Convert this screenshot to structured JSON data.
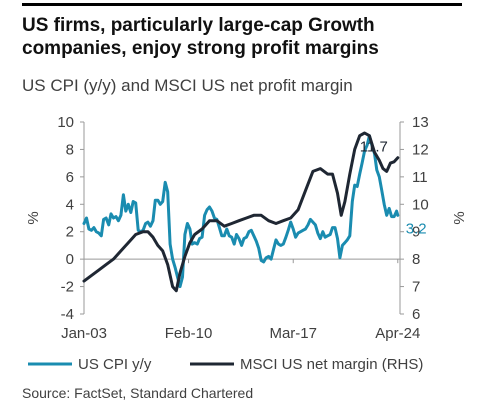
{
  "header": {
    "title": "US firms, particularly large-cap Growth companies, enjoy strong profit margins",
    "subtitle": "US CPI (y/y) and MSCI US net profit margin"
  },
  "footer": {
    "source": "Source: FactSet, Standard Chartered"
  },
  "colors": {
    "cpi": "#1a8cb0",
    "margin": "#1f2733",
    "axis": "#999999",
    "text": "#404040"
  },
  "chart_data": {
    "type": "line",
    "x_axis": {
      "ticks": [
        "Jan-03",
        "Feb-10",
        "Mar-17",
        "Apr-24"
      ],
      "tick_years": [
        2003.0,
        2010.08,
        2017.17,
        2024.25
      ],
      "range": [
        2003.0,
        2024.4
      ]
    },
    "y_left": {
      "label": "%",
      "range": [
        -4,
        10
      ],
      "ticks": [
        -4,
        -2,
        0,
        2,
        4,
        6,
        8,
        10
      ]
    },
    "y_right": {
      "label": "%",
      "range": [
        6,
        13
      ],
      "ticks": [
        6,
        7,
        8,
        9,
        10,
        11,
        12,
        13
      ]
    },
    "series": [
      {
        "name": "US CPI y/y",
        "axis": "left",
        "end_label": "3.2",
        "points": [
          [
            2003.0,
            2.6
          ],
          [
            2003.17,
            3.0
          ],
          [
            2003.33,
            2.2
          ],
          [
            2003.5,
            2.1
          ],
          [
            2003.67,
            2.3
          ],
          [
            2003.83,
            2.0
          ],
          [
            2004.0,
            1.9
          ],
          [
            2004.17,
            1.7
          ],
          [
            2004.33,
            2.9
          ],
          [
            2004.5,
            3.0
          ],
          [
            2004.67,
            2.5
          ],
          [
            2004.83,
            3.3
          ],
          [
            2005.0,
            3.0
          ],
          [
            2005.17,
            3.1
          ],
          [
            2005.33,
            2.8
          ],
          [
            2005.5,
            3.2
          ],
          [
            2005.67,
            4.7
          ],
          [
            2005.83,
            3.5
          ],
          [
            2006.0,
            4.0
          ],
          [
            2006.17,
            3.4
          ],
          [
            2006.33,
            4.2
          ],
          [
            2006.5,
            4.1
          ],
          [
            2006.67,
            2.1
          ],
          [
            2006.83,
            2.0
          ],
          [
            2007.0,
            2.1
          ],
          [
            2007.17,
            2.6
          ],
          [
            2007.33,
            2.7
          ],
          [
            2007.5,
            2.4
          ],
          [
            2007.67,
            2.8
          ],
          [
            2007.83,
            4.3
          ],
          [
            2008.0,
            4.3
          ],
          [
            2008.17,
            4.0
          ],
          [
            2008.33,
            4.2
          ],
          [
            2008.5,
            5.6
          ],
          [
            2008.67,
            4.9
          ],
          [
            2008.83,
            1.1
          ],
          [
            2009.0,
            0.0
          ],
          [
            2009.17,
            -0.6
          ],
          [
            2009.33,
            -1.3
          ],
          [
            2009.5,
            -2.0
          ],
          [
            2009.67,
            -1.3
          ],
          [
            2009.83,
            1.8
          ],
          [
            2010.0,
            2.6
          ],
          [
            2010.17,
            2.2
          ],
          [
            2010.33,
            1.1
          ],
          [
            2010.5,
            1.2
          ],
          [
            2010.67,
            1.1
          ],
          [
            2010.83,
            1.5
          ],
          [
            2011.0,
            1.6
          ],
          [
            2011.17,
            3.2
          ],
          [
            2011.33,
            3.6
          ],
          [
            2011.5,
            3.8
          ],
          [
            2011.67,
            3.5
          ],
          [
            2011.83,
            3.0
          ],
          [
            2012.0,
            2.9
          ],
          [
            2012.17,
            2.3
          ],
          [
            2012.33,
            1.7
          ],
          [
            2012.5,
            1.7
          ],
          [
            2012.67,
            2.2
          ],
          [
            2012.83,
            1.7
          ],
          [
            2013.0,
            1.6
          ],
          [
            2013.17,
            1.1
          ],
          [
            2013.33,
            1.8
          ],
          [
            2013.5,
            1.5
          ],
          [
            2013.67,
            1.0
          ],
          [
            2013.83,
            1.5
          ],
          [
            2014.0,
            1.6
          ],
          [
            2014.17,
            2.0
          ],
          [
            2014.33,
            2.1
          ],
          [
            2014.5,
            1.7
          ],
          [
            2014.67,
            1.3
          ],
          [
            2014.83,
            0.8
          ],
          [
            2015.0,
            -0.1
          ],
          [
            2015.17,
            -0.2
          ],
          [
            2015.33,
            0.1
          ],
          [
            2015.5,
            0.2
          ],
          [
            2015.67,
            0.0
          ],
          [
            2015.83,
            0.7
          ],
          [
            2016.0,
            1.4
          ],
          [
            2016.17,
            1.1
          ],
          [
            2016.33,
            1.0
          ],
          [
            2016.5,
            1.1
          ],
          [
            2016.67,
            1.6
          ],
          [
            2016.83,
            2.1
          ],
          [
            2017.0,
            2.7
          ],
          [
            2017.17,
            2.2
          ],
          [
            2017.33,
            1.6
          ],
          [
            2017.5,
            1.9
          ],
          [
            2017.67,
            2.0
          ],
          [
            2017.83,
            2.1
          ],
          [
            2018.0,
            2.2
          ],
          [
            2018.17,
            2.5
          ],
          [
            2018.33,
            2.9
          ],
          [
            2018.5,
            2.7
          ],
          [
            2018.67,
            2.5
          ],
          [
            2018.83,
            1.9
          ],
          [
            2019.0,
            1.5
          ],
          [
            2019.17,
            2.0
          ],
          [
            2019.33,
            1.6
          ],
          [
            2019.5,
            1.7
          ],
          [
            2019.67,
            1.8
          ],
          [
            2019.83,
            2.3
          ],
          [
            2020.0,
            2.3
          ],
          [
            2020.17,
            1.5
          ],
          [
            2020.33,
            0.1
          ],
          [
            2020.5,
            1.0
          ],
          [
            2020.67,
            1.2
          ],
          [
            2020.83,
            1.4
          ],
          [
            2021.0,
            1.7
          ],
          [
            2021.17,
            4.2
          ],
          [
            2021.33,
            5.4
          ],
          [
            2021.5,
            5.3
          ],
          [
            2021.67,
            6.2
          ],
          [
            2021.83,
            7.0
          ],
          [
            2022.0,
            7.9
          ],
          [
            2022.17,
            8.3
          ],
          [
            2022.33,
            9.0
          ],
          [
            2022.5,
            8.3
          ],
          [
            2022.67,
            7.7
          ],
          [
            2022.83,
            6.5
          ],
          [
            2023.0,
            6.0
          ],
          [
            2023.17,
            5.0
          ],
          [
            2023.33,
            4.0
          ],
          [
            2023.5,
            3.2
          ],
          [
            2023.67,
            3.7
          ],
          [
            2023.83,
            3.1
          ],
          [
            2024.0,
            3.1
          ],
          [
            2024.17,
            3.5
          ],
          [
            2024.25,
            3.2
          ]
        ]
      },
      {
        "name": "MSCI US net margin (RHS)",
        "axis": "right",
        "end_label": "11.7",
        "points": [
          [
            2003.0,
            7.2
          ],
          [
            2003.5,
            7.4
          ],
          [
            2004.0,
            7.6
          ],
          [
            2004.5,
            7.8
          ],
          [
            2005.0,
            8.0
          ],
          [
            2005.5,
            8.3
          ],
          [
            2006.0,
            8.6
          ],
          [
            2006.5,
            8.9
          ],
          [
            2007.0,
            9.0
          ],
          [
            2007.33,
            9.0
          ],
          [
            2007.67,
            8.8
          ],
          [
            2008.0,
            8.5
          ],
          [
            2008.33,
            8.3
          ],
          [
            2008.67,
            7.8
          ],
          [
            2009.0,
            7.0
          ],
          [
            2009.25,
            6.85
          ],
          [
            2009.5,
            7.5
          ],
          [
            2009.83,
            8.1
          ],
          [
            2010.17,
            8.6
          ],
          [
            2010.5,
            8.9
          ],
          [
            2011.0,
            9.1
          ],
          [
            2011.5,
            9.4
          ],
          [
            2012.0,
            9.4
          ],
          [
            2012.5,
            9.2
          ],
          [
            2013.0,
            9.3
          ],
          [
            2013.5,
            9.4
          ],
          [
            2014.0,
            9.5
          ],
          [
            2014.5,
            9.6
          ],
          [
            2015.0,
            9.6
          ],
          [
            2015.5,
            9.4
          ],
          [
            2016.0,
            9.3
          ],
          [
            2016.5,
            9.4
          ],
          [
            2017.0,
            9.5
          ],
          [
            2017.5,
            9.8
          ],
          [
            2018.0,
            10.5
          ],
          [
            2018.5,
            11.2
          ],
          [
            2019.0,
            11.3
          ],
          [
            2019.5,
            11.1
          ],
          [
            2019.83,
            11.1
          ],
          [
            2020.17,
            10.4
          ],
          [
            2020.42,
            9.6
          ],
          [
            2020.67,
            10.1
          ],
          [
            2021.0,
            11.1
          ],
          [
            2021.33,
            12.0
          ],
          [
            2021.67,
            12.5
          ],
          [
            2022.0,
            12.6
          ],
          [
            2022.33,
            12.5
          ],
          [
            2022.67,
            11.9
          ],
          [
            2023.0,
            11.6
          ],
          [
            2023.25,
            11.3
          ],
          [
            2023.5,
            11.2
          ],
          [
            2023.75,
            11.5
          ],
          [
            2024.0,
            11.55
          ],
          [
            2024.25,
            11.7
          ]
        ]
      }
    ]
  }
}
